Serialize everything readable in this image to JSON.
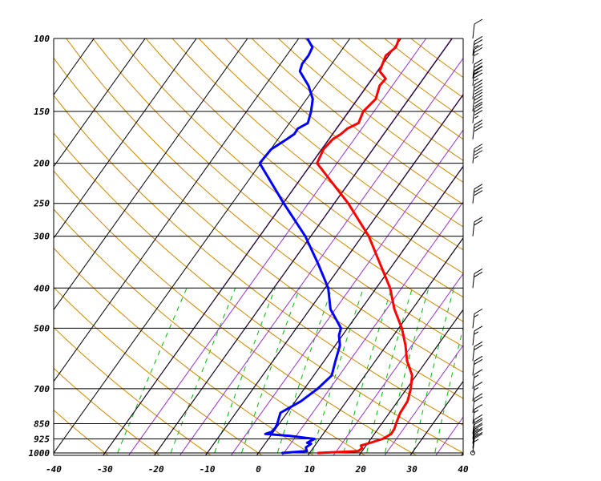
{
  "chart_data": {
    "type": "skew-t log-p",
    "title": "",
    "xlabel": "",
    "ylabel": "",
    "pressure_levels": [
      1000,
      925,
      850,
      700,
      500,
      400,
      300,
      250,
      200,
      150,
      100
    ],
    "temperature_ticks": [
      -40,
      -30,
      -20,
      -10,
      0,
      10,
      20,
      30,
      40
    ],
    "xlim": [
      -40,
      40
    ],
    "ylim": [
      1000,
      100
    ],
    "grid": true,
    "colors": {
      "temperature": "#ff0000",
      "dewpoint": "#0000ff",
      "isobars": "#000000",
      "isotherms": "#000000",
      "dry_adiabats": "#cc8800",
      "moist_adiabats": "#9933cc",
      "mixing_ratio": "#00bb00",
      "wind_barbs": "#000000"
    },
    "series": [
      {
        "key": "temperature",
        "values": [
          {
            "p": 1000,
            "t": 11.7
          },
          {
            "p": 990,
            "t": 19.2
          },
          {
            "p": 975,
            "t": 19.6
          },
          {
            "p": 960,
            "t": 19.0
          },
          {
            "p": 950,
            "t": 20.0
          },
          {
            "p": 925,
            "t": 22.3
          },
          {
            "p": 900,
            "t": 23.3
          },
          {
            "p": 875,
            "t": 23.2
          },
          {
            "p": 850,
            "t": 22.8
          },
          {
            "p": 800,
            "t": 22.1
          },
          {
            "p": 750,
            "t": 21.9
          },
          {
            "p": 700,
            "t": 20.8
          },
          {
            "p": 650,
            "t": 19.2
          },
          {
            "p": 600,
            "t": 16.2
          },
          {
            "p": 550,
            "t": 13.7
          },
          {
            "p": 500,
            "t": 10.6
          },
          {
            "p": 450,
            "t": 6.5
          },
          {
            "p": 400,
            "t": 2.7
          },
          {
            "p": 350,
            "t": -2.6
          },
          {
            "p": 300,
            "t": -8.7
          },
          {
            "p": 250,
            "t": -17.3
          },
          {
            "p": 200,
            "t": -29.0
          },
          {
            "p": 185,
            "t": -29.7
          },
          {
            "p": 175,
            "t": -29.3
          },
          {
            "p": 170,
            "t": -28.4
          },
          {
            "p": 165,
            "t": -27.9
          },
          {
            "p": 160,
            "t": -26.5
          },
          {
            "p": 150,
            "t": -27.2
          },
          {
            "p": 140,
            "t": -26.5
          },
          {
            "p": 130,
            "t": -27.6
          },
          {
            "p": 125,
            "t": -27.4
          },
          {
            "p": 120,
            "t": -29.6
          },
          {
            "p": 110,
            "t": -30.6
          },
          {
            "p": 105,
            "t": -29.8
          },
          {
            "p": 100,
            "t": -30.4
          }
        ]
      },
      {
        "key": "dewpoint",
        "values": [
          {
            "p": 1000,
            "t": 4.7
          },
          {
            "p": 990,
            "t": 9.2
          },
          {
            "p": 970,
            "t": 8.5
          },
          {
            "p": 950,
            "t": 9.0
          },
          {
            "p": 945,
            "t": 8.1
          },
          {
            "p": 925,
            "t": 9.0
          },
          {
            "p": 910,
            "t": 3.8
          },
          {
            "p": 900,
            "t": -1.3
          },
          {
            "p": 890,
            "t": -0.4
          },
          {
            "p": 870,
            "t": -0.2
          },
          {
            "p": 850,
            "t": -0.4
          },
          {
            "p": 800,
            "t": -1.3
          },
          {
            "p": 750,
            "t": 1.1
          },
          {
            "p": 700,
            "t": 2.6
          },
          {
            "p": 650,
            "t": 3.5
          },
          {
            "p": 600,
            "t": 2.2
          },
          {
            "p": 550,
            "t": 0.9
          },
          {
            "p": 520,
            "t": -0.7
          },
          {
            "p": 500,
            "t": -1.3
          },
          {
            "p": 450,
            "t": -6.0
          },
          {
            "p": 400,
            "t": -9.4
          },
          {
            "p": 350,
            "t": -14.7
          },
          {
            "p": 300,
            "t": -21.1
          },
          {
            "p": 250,
            "t": -29.9
          },
          {
            "p": 200,
            "t": -40.2
          },
          {
            "p": 185,
            "t": -39.9
          },
          {
            "p": 175,
            "t": -38.3
          },
          {
            "p": 170,
            "t": -37.5
          },
          {
            "p": 165,
            "t": -37.6
          },
          {
            "p": 160,
            "t": -36.4
          },
          {
            "p": 150,
            "t": -37.4
          },
          {
            "p": 140,
            "t": -38.8
          },
          {
            "p": 130,
            "t": -41.5
          },
          {
            "p": 120,
            "t": -45.2
          },
          {
            "p": 115,
            "t": -45.8
          },
          {
            "p": 110,
            "t": -45.7
          },
          {
            "p": 105,
            "t": -46.1
          },
          {
            "p": 100,
            "t": -48.3
          }
        ]
      }
    ],
    "wind_barbs": [
      {
        "p": 1000,
        "speed_kt": 15
      },
      {
        "p": 975,
        "speed_kt": 20
      },
      {
        "p": 950,
        "speed_kt": 25
      },
      {
        "p": 925,
        "speed_kt": 25
      },
      {
        "p": 900,
        "speed_kt": 20
      },
      {
        "p": 850,
        "speed_kt": 15
      },
      {
        "p": 800,
        "speed_kt": 20
      },
      {
        "p": 750,
        "speed_kt": 15
      },
      {
        "p": 700,
        "speed_kt": 15
      },
      {
        "p": 650,
        "speed_kt": 20
      },
      {
        "p": 600,
        "speed_kt": 20
      },
      {
        "p": 550,
        "speed_kt": 15
      },
      {
        "p": 500,
        "speed_kt": 15
      },
      {
        "p": 400,
        "speed_kt": 20
      },
      {
        "p": 300,
        "speed_kt": 20
      },
      {
        "p": 250,
        "speed_kt": 30
      },
      {
        "p": 200,
        "speed_kt": 35
      },
      {
        "p": 175,
        "speed_kt": 30
      },
      {
        "p": 160,
        "speed_kt": 35
      },
      {
        "p": 150,
        "speed_kt": 40
      },
      {
        "p": 140,
        "speed_kt": 40
      },
      {
        "p": 130,
        "speed_kt": 35
      },
      {
        "p": 125,
        "speed_kt": 35
      },
      {
        "p": 115,
        "speed_kt": 25
      },
      {
        "p": 110,
        "speed_kt": 25
      },
      {
        "p": 100,
        "speed_kt": 10
      }
    ]
  }
}
